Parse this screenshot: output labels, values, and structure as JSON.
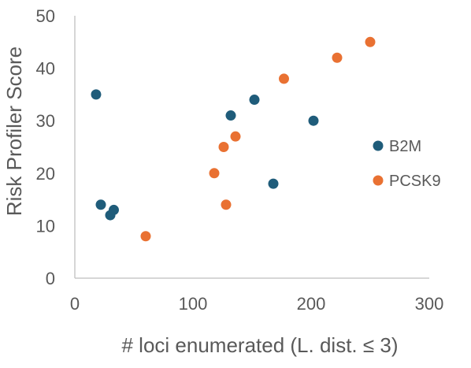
{
  "chart_data": {
    "type": "scatter",
    "xlabel": "# loci enumerated (L. dist. ≤ 3)",
    "ylabel": "Risk Profiler Score",
    "xlim": [
      0,
      300
    ],
    "ylim": [
      0,
      50
    ],
    "x_ticks": [
      0,
      100,
      200,
      300
    ],
    "y_ticks": [
      0,
      10,
      20,
      30,
      40,
      50
    ],
    "grid": false,
    "legend_position": "right",
    "series": [
      {
        "name": "B2M",
        "color": "#1f5c7a",
        "points": [
          {
            "x": 18,
            "y": 35
          },
          {
            "x": 22,
            "y": 14
          },
          {
            "x": 30,
            "y": 12
          },
          {
            "x": 33,
            "y": 13
          },
          {
            "x": 132,
            "y": 31
          },
          {
            "x": 152,
            "y": 34
          },
          {
            "x": 168,
            "y": 18
          },
          {
            "x": 202,
            "y": 30
          }
        ]
      },
      {
        "name": "PCSK9",
        "color": "#e97132",
        "points": [
          {
            "x": 60,
            "y": 8
          },
          {
            "x": 118,
            "y": 20
          },
          {
            "x": 126,
            "y": 25
          },
          {
            "x": 128,
            "y": 14
          },
          {
            "x": 136,
            "y": 27
          },
          {
            "x": 177,
            "y": 38
          },
          {
            "x": 222,
            "y": 42
          },
          {
            "x": 250,
            "y": 45
          }
        ]
      }
    ]
  },
  "colors": {
    "axis": "#bfbfbf",
    "text": "#595959"
  }
}
